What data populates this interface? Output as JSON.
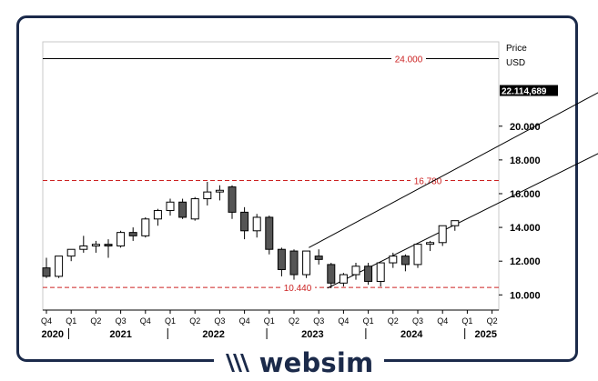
{
  "chart_data": {
    "type": "candlestick",
    "period": "quarterly",
    "price_axis": {
      "title": "Price",
      "unit": "USD",
      "ticks": [
        "10.000",
        "12.000",
        "14.000",
        "16.000",
        "18.000",
        "20.000"
      ],
      "ylim": [
        9.1,
        25.0
      ]
    },
    "current_price": {
      "value": 22.114689,
      "label": "22.114,689"
    },
    "horizontal_levels": [
      {
        "value": 24.0,
        "label": "24.000",
        "style": "solid",
        "color": "#000000"
      },
      {
        "value": 16.78,
        "label": "16.780",
        "style": "dashed",
        "color": "#cc2222"
      },
      {
        "value": 10.44,
        "label": "10.440",
        "style": "dashed",
        "color": "#cc2222"
      }
    ],
    "channel": {
      "upper": [
        {
          "x": 21.2,
          "y": 12.8
        },
        {
          "x": 51.2,
          "y": 24.6
        }
      ],
      "lower": [
        {
          "x": 22.7,
          "y": 10.4
        },
        {
          "x": 51.2,
          "y": 20.8
        }
      ]
    },
    "x_ticks": [
      {
        "x": 0,
        "label": "Q4"
      },
      {
        "x": 2,
        "label": "Q1"
      },
      {
        "x": 4,
        "label": "Q2"
      },
      {
        "x": 6,
        "label": "Q3"
      },
      {
        "x": 8,
        "label": "Q4"
      },
      {
        "x": 10,
        "label": "Q1"
      },
      {
        "x": 12,
        "label": "Q2"
      },
      {
        "x": 14,
        "label": "Q3"
      },
      {
        "x": 16,
        "label": "Q4"
      },
      {
        "x": 18,
        "label": "Q1"
      },
      {
        "x": 20,
        "label": "Q2"
      },
      {
        "x": 22,
        "label": "Q3"
      },
      {
        "x": 24,
        "label": "Q4"
      },
      {
        "x": 26,
        "label": "Q1"
      },
      {
        "x": 28,
        "label": "Q2"
      },
      {
        "x": 30,
        "label": "Q3"
      },
      {
        "x": 32,
        "label": "Q4"
      },
      {
        "x": 34,
        "label": "Q1"
      },
      {
        "x": 36,
        "label": "Q2"
      }
    ],
    "year_labels": [
      {
        "x": 0.5,
        "label": "2020",
        "sep": 1.8
      },
      {
        "x": 6.0,
        "label": "2021",
        "sep": 9.8
      },
      {
        "x": 13.5,
        "label": "2022",
        "sep": 17.8
      },
      {
        "x": 21.5,
        "label": "2023",
        "sep": 25.8
      },
      {
        "x": 29.5,
        "label": "2024",
        "sep": 33.8
      },
      {
        "x": 35.5,
        "label": "2025",
        "sep": null
      }
    ],
    "candles": [
      {
        "x": 0,
        "o": 11.6,
        "h": 12.2,
        "l": 11.0,
        "c": 11.1
      },
      {
        "x": 1,
        "o": 11.1,
        "h": 12.3,
        "l": 11.0,
        "c": 12.3
      },
      {
        "x": 2,
        "o": 12.3,
        "h": 12.7,
        "l": 12.0,
        "c": 12.7
      },
      {
        "x": 3,
        "o": 12.7,
        "h": 13.5,
        "l": 12.5,
        "c": 12.9
      },
      {
        "x": 4,
        "o": 12.9,
        "h": 13.2,
        "l": 12.5,
        "c": 13.0
      },
      {
        "x": 5,
        "o": 13.0,
        "h": 13.3,
        "l": 12.2,
        "c": 12.9
      },
      {
        "x": 6,
        "o": 12.9,
        "h": 13.8,
        "l": 12.8,
        "c": 13.7
      },
      {
        "x": 7,
        "o": 13.7,
        "h": 14.0,
        "l": 13.2,
        "c": 13.5
      },
      {
        "x": 8,
        "o": 13.5,
        "h": 14.6,
        "l": 13.4,
        "c": 14.5
      },
      {
        "x": 9,
        "o": 14.5,
        "h": 15.1,
        "l": 14.1,
        "c": 15.0
      },
      {
        "x": 10,
        "o": 15.0,
        "h": 15.7,
        "l": 14.7,
        "c": 15.5
      },
      {
        "x": 11,
        "o": 15.5,
        "h": 15.7,
        "l": 14.5,
        "c": 14.6
      },
      {
        "x": 12,
        "o": 14.5,
        "h": 15.8,
        "l": 14.4,
        "c": 15.7
      },
      {
        "x": 13,
        "o": 15.7,
        "h": 16.7,
        "l": 15.3,
        "c": 16.1
      },
      {
        "x": 14,
        "o": 16.1,
        "h": 16.5,
        "l": 15.6,
        "c": 16.2
      },
      {
        "x": 15,
        "o": 16.4,
        "h": 16.5,
        "l": 14.5,
        "c": 14.9
      },
      {
        "x": 16,
        "o": 14.9,
        "h": 15.2,
        "l": 13.3,
        "c": 13.8
      },
      {
        "x": 17,
        "o": 13.8,
        "h": 14.8,
        "l": 13.4,
        "c": 14.6
      },
      {
        "x": 18,
        "o": 14.6,
        "h": 14.7,
        "l": 12.4,
        "c": 12.7
      },
      {
        "x": 19,
        "o": 12.7,
        "h": 12.8,
        "l": 11.1,
        "c": 11.5
      },
      {
        "x": 20,
        "o": 12.6,
        "h": 12.7,
        "l": 10.9,
        "c": 11.2
      },
      {
        "x": 21,
        "o": 11.2,
        "h": 12.6,
        "l": 11.0,
        "c": 12.6
      },
      {
        "x": 22,
        "o": 12.3,
        "h": 12.7,
        "l": 11.8,
        "c": 12.1
      },
      {
        "x": 23,
        "o": 11.8,
        "h": 11.9,
        "l": 10.4,
        "c": 10.7
      },
      {
        "x": 24,
        "o": 10.7,
        "h": 11.3,
        "l": 10.5,
        "c": 11.2
      },
      {
        "x": 25,
        "o": 11.2,
        "h": 11.9,
        "l": 10.9,
        "c": 11.7
      },
      {
        "x": 26,
        "o": 11.7,
        "h": 11.9,
        "l": 10.6,
        "c": 10.8
      },
      {
        "x": 27,
        "o": 10.8,
        "h": 11.9,
        "l": 10.5,
        "c": 11.9
      },
      {
        "x": 28,
        "o": 11.9,
        "h": 12.5,
        "l": 11.6,
        "c": 12.3
      },
      {
        "x": 29,
        "o": 12.3,
        "h": 12.4,
        "l": 11.4,
        "c": 11.8
      },
      {
        "x": 30,
        "o": 11.8,
        "h": 13.0,
        "l": 11.6,
        "c": 13.0
      },
      {
        "x": 31,
        "o": 13.0,
        "h": 13.2,
        "l": 12.6,
        "c": 13.1
      },
      {
        "x": 32,
        "o": 13.1,
        "h": 14.1,
        "l": 12.9,
        "c": 14.1
      },
      {
        "x": 33,
        "o": 14.1,
        "h": 14.4,
        "l": 13.8,
        "c": 14.4
      }
    ]
  },
  "brand": {
    "name": "websim",
    "color": "#1b2a4a"
  }
}
